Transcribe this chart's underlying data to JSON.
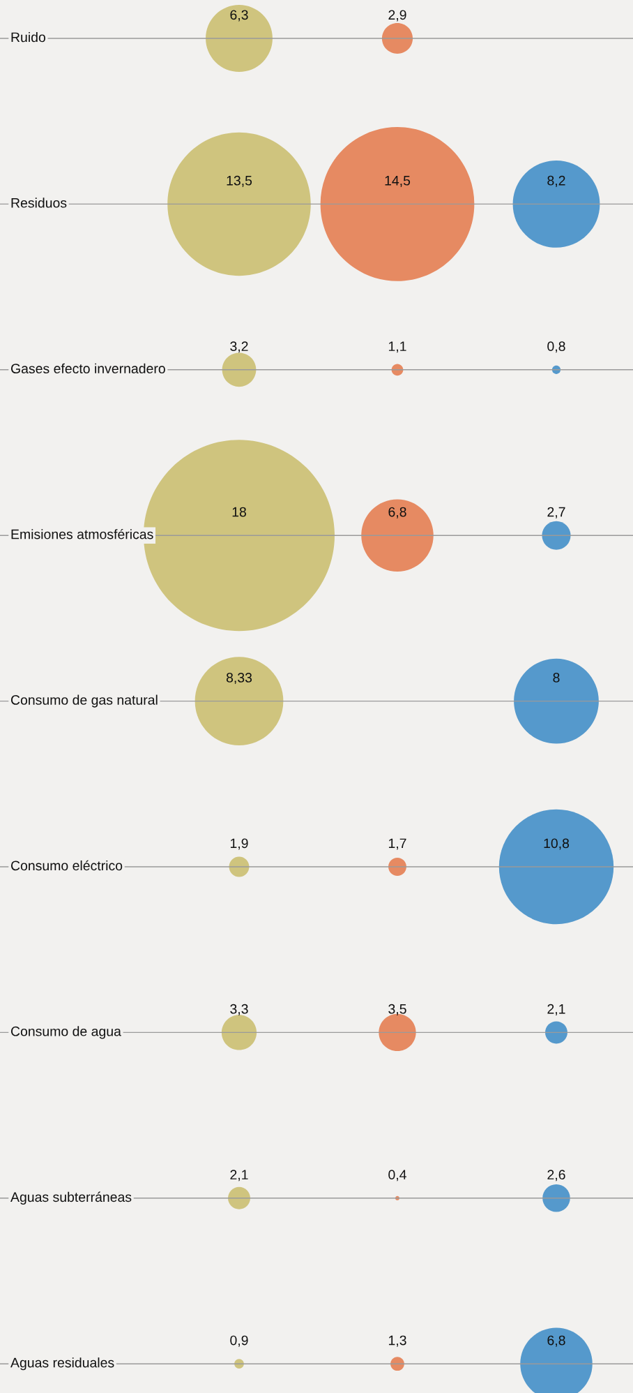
{
  "chart_data": {
    "type": "other",
    "categories": [
      "Ruido",
      "Residuos",
      "Gases efecto invernadero",
      "Emisiones atmosféricas",
      "Consumo de gas natural",
      "Consumo eléctrico",
      "Consumo de agua",
      "Aguas subterráneas",
      "Aguas residuales"
    ],
    "series": [
      {
        "color": "#cfc47e",
        "values": [
          6.3,
          13.5,
          3.2,
          18,
          8.33,
          1.9,
          3.3,
          2.1,
          0.9
        ],
        "value_labels": [
          "6,3",
          "13,5",
          "3,2",
          "18",
          "8,33",
          "1,9",
          "3,3",
          "2,1",
          "0,9"
        ]
      },
      {
        "color": "#e68a62",
        "values": [
          2.9,
          14.5,
          1.1,
          6.8,
          null,
          1.7,
          3.5,
          0.4,
          1.3
        ],
        "value_labels": [
          "2,9",
          "14,5",
          "1,1",
          "6,8",
          null,
          "1,7",
          "3,5",
          "0,4",
          "1,3"
        ]
      },
      {
        "color": "#5599cc",
        "values": [
          null,
          8.2,
          0.8,
          2.7,
          8,
          10.8,
          2.1,
          2.6,
          6.8
        ],
        "value_labels": [
          null,
          "8,2",
          "0,8",
          "2,7",
          "8",
          "10,8",
          "2,1",
          "2,6",
          "6,8"
        ]
      }
    ]
  }
}
